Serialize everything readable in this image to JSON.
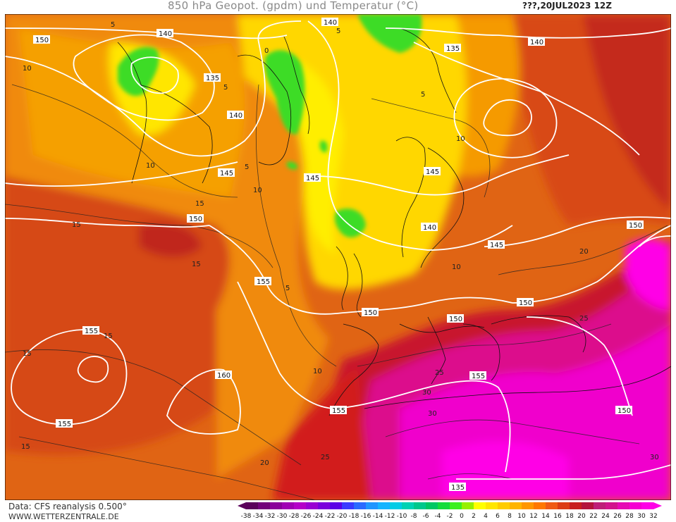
{
  "header": {
    "title": "850 hPa Geopot. (gpdm) und Temperatur (°C)",
    "datetime": "???,20JUL2023 12Z"
  },
  "footer": {
    "data_source": "Data: CFS reanalysis 0.500°",
    "website": "WWW.WETTERZENTRALE.DE"
  },
  "colorbar": {
    "ticks": [
      "-38",
      "-34",
      "-32",
      "-30",
      "-28",
      "-26",
      "-24",
      "-22",
      "-20",
      "-18",
      "-16",
      "-14",
      "-12",
      "-10",
      "-8",
      "-6",
      "-4",
      "-2",
      "0",
      "2",
      "4",
      "6",
      "8",
      "10",
      "12",
      "14",
      "16",
      "18",
      "20",
      "22",
      "24",
      "26",
      "28",
      "30",
      "32"
    ],
    "colors": [
      "#5a005a",
      "#72007a",
      "#8a009a",
      "#a000b4",
      "#b400c8",
      "#9a00d2",
      "#7a00dc",
      "#5a00e6",
      "#3a3aff",
      "#2a6aff",
      "#1e96ff",
      "#14b4ff",
      "#00cce6",
      "#00d2b4",
      "#00c88c",
      "#00c864",
      "#14dc3c",
      "#3cf01e",
      "#96f000",
      "#ffff00",
      "#ffe600",
      "#ffcc00",
      "#ffb400",
      "#ff9600",
      "#ff7800",
      "#f05a14",
      "#dc3c14",
      "#c81e1e",
      "#b4143c",
      "#be1e78",
      "#d2148c",
      "#e60ab4",
      "#f500d2",
      "#ff00e6"
    ]
  },
  "isohypse_labels": [
    "150",
    "140",
    "140",
    "135",
    "140",
    "145",
    "145",
    "135",
    "140",
    "145",
    "150",
    "150",
    "150",
    "155",
    "155",
    "160",
    "155",
    "155",
    "150",
    "150",
    "155",
    "150",
    "145",
    "140",
    "135"
  ],
  "isotherm_labels": [
    "5",
    "5",
    "10",
    "5",
    "0",
    "5",
    "10",
    "15",
    "15",
    "15",
    "5",
    "10",
    "15",
    "20",
    "25",
    "30",
    "25",
    "30",
    "15",
    "10",
    "15",
    "20",
    "25",
    "30",
    "5",
    "10",
    "10"
  ]
}
